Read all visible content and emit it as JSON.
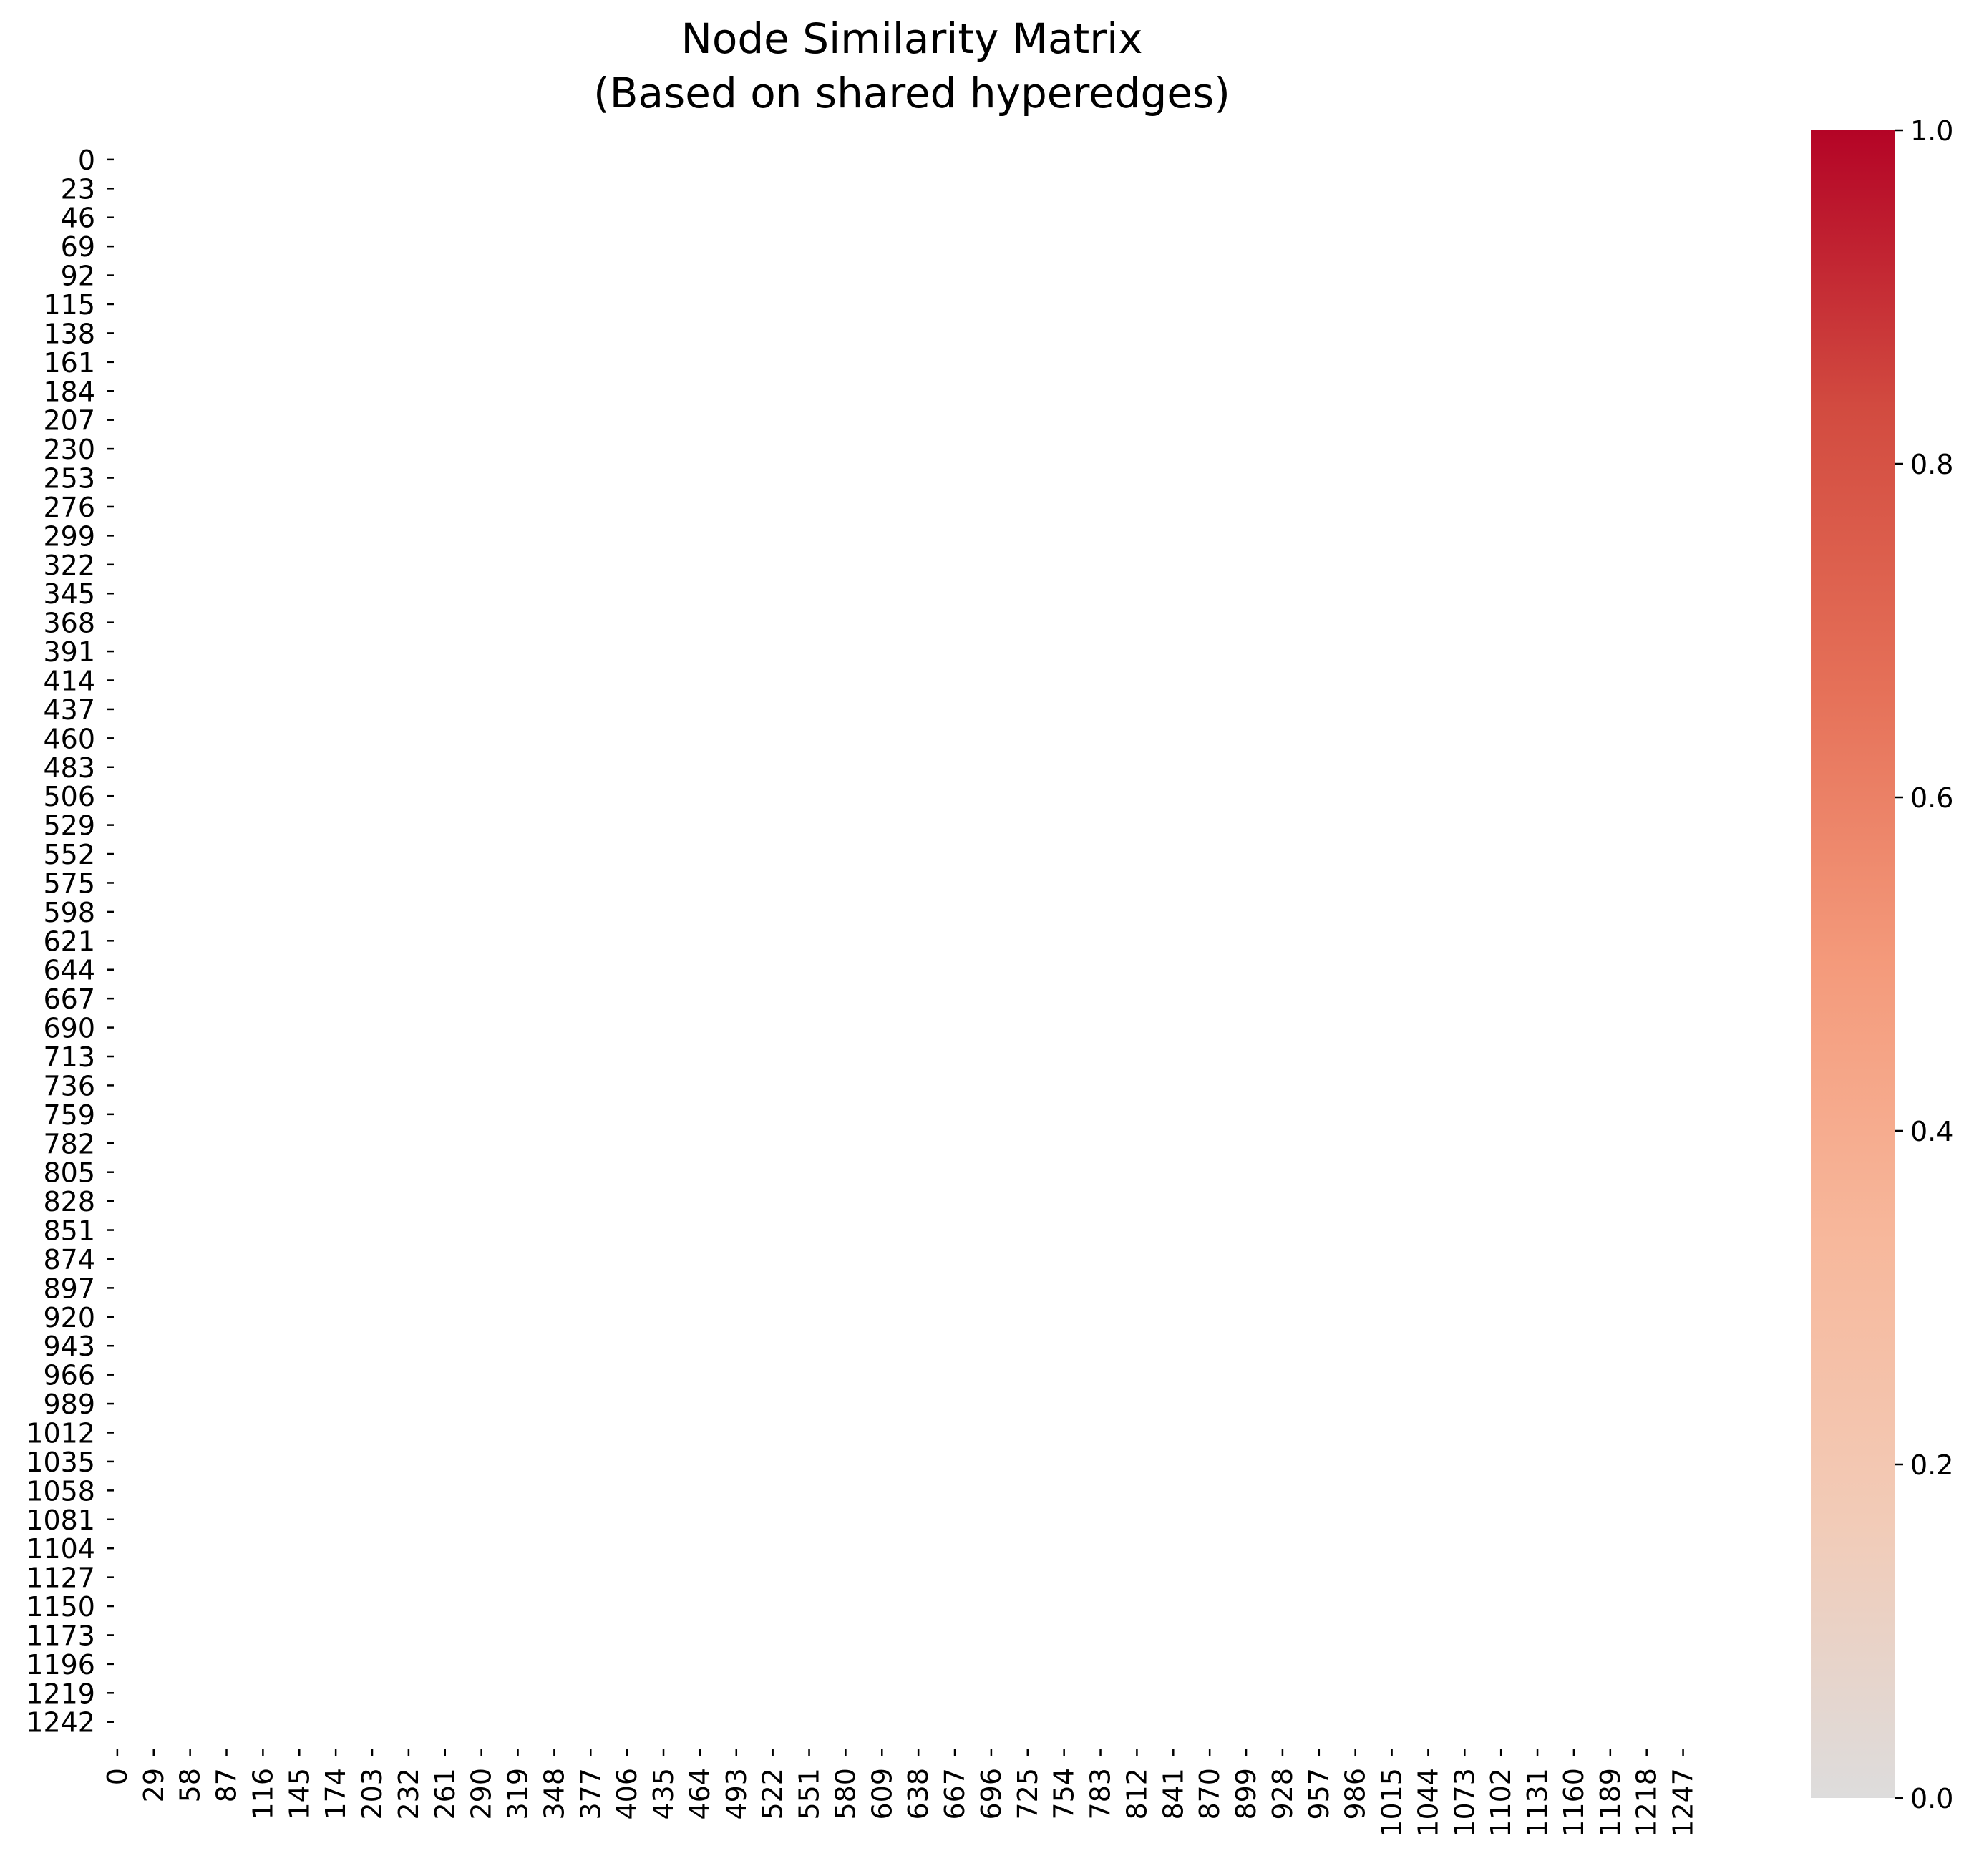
{
  "chart_data": {
    "type": "heatmap",
    "title": "Node Similarity Matrix\n(Based on shared hyperedges)",
    "title_lines": [
      "Node Similarity Matrix",
      "(Based on shared hyperedges)"
    ],
    "xlabel": "",
    "ylabel": "",
    "n_rows": 1262,
    "n_cols": 1262,
    "row_ticks": [
      "0",
      "23",
      "46",
      "69",
      "92",
      "115",
      "138",
      "161",
      "184",
      "207",
      "230",
      "253",
      "276",
      "299",
      "322",
      "345",
      "368",
      "391",
      "414",
      "437",
      "460",
      "483",
      "506",
      "529",
      "552",
      "575",
      "598",
      "621",
      "644",
      "667",
      "690",
      "713",
      "736",
      "759",
      "782",
      "805",
      "828",
      "851",
      "874",
      "897",
      "920",
      "943",
      "966",
      "989",
      "1012",
      "1035",
      "1058",
      "1081",
      "1104",
      "1127",
      "1150",
      "1173",
      "1196",
      "1219",
      "1242"
    ],
    "col_ticks": [
      "0",
      "29",
      "58",
      "87",
      "116",
      "145",
      "174",
      "203",
      "232",
      "261",
      "290",
      "319",
      "348",
      "377",
      "406",
      "435",
      "464",
      "493",
      "522",
      "551",
      "580",
      "609",
      "638",
      "667",
      "696",
      "725",
      "754",
      "783",
      "812",
      "841",
      "870",
      "899",
      "928",
      "957",
      "986",
      "1015",
      "1044",
      "1073",
      "1102",
      "1131",
      "1160",
      "1189",
      "1218",
      "1247"
    ],
    "cell_value_observed": "near-zero (matrix appears white)",
    "colorbar": {
      "range": [
        0.0,
        1.0
      ],
      "ticks": [
        "0.0",
        "0.2",
        "0.4",
        "0.6",
        "0.8",
        "1.0"
      ],
      "colormap": "coolwarm (upper half)",
      "stops": [
        "#dddcdc",
        "#f2cbb7",
        "#f7b89c",
        "#f49a7b",
        "#e57058",
        "#d24b40",
        "#b40426"
      ]
    },
    "grid": false,
    "legend": "colorbar-right"
  }
}
